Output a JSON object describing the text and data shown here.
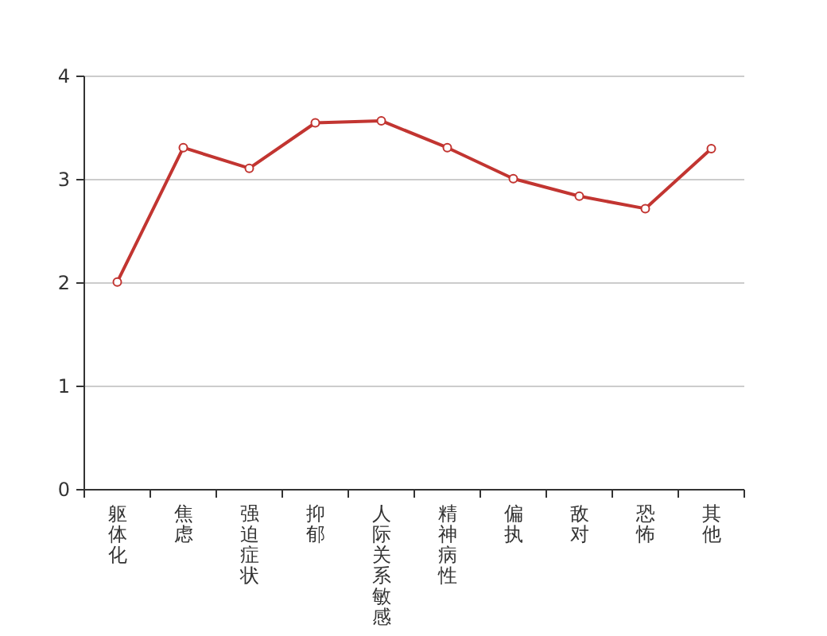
{
  "chart_data": {
    "type": "line",
    "categories": [
      "躯体化",
      "焦虑",
      "强迫症状",
      "抑郁",
      "人际关系敏感",
      "精神病性",
      "偏执",
      "敌对",
      "恐怖",
      "其他"
    ],
    "series": [
      {
        "color": "#c23531",
        "values": [
          2.01,
          3.31,
          3.11,
          3.55,
          3.57,
          3.31,
          3.01,
          2.84,
          2.72,
          3.3
        ]
      }
    ],
    "ylim": [
      0,
      4
    ],
    "yticks": [
      0,
      1,
      2,
      3,
      4
    ],
    "grid": "y",
    "marker": "circle",
    "line_style": "solid"
  }
}
